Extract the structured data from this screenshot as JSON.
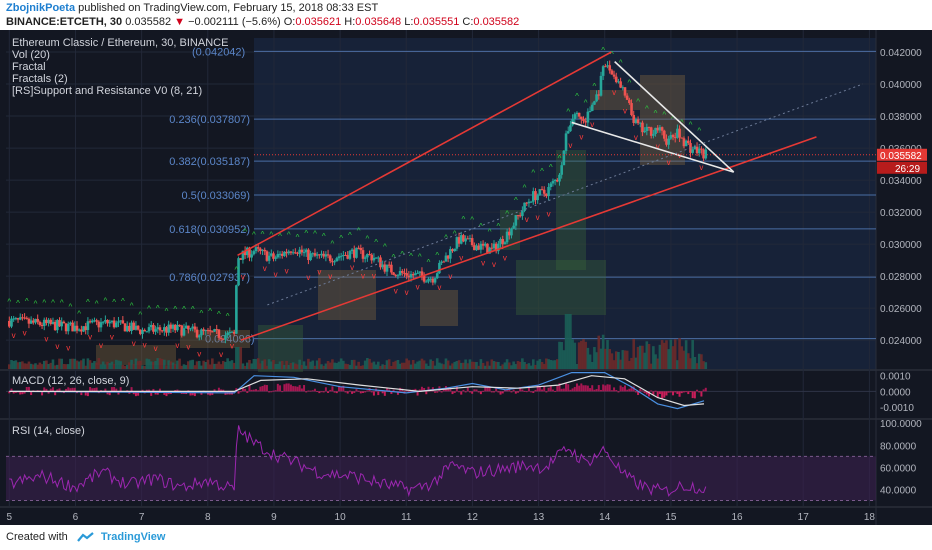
{
  "header": {
    "author": "ZbojnikPoeta",
    "published": "published on TradingView.com, February 15, 2018 08:33 EST",
    "symbol": "BINANCE:ETCETH, 30",
    "last": "0.035582",
    "change_icon": "down-triangle",
    "change": "−0.002111 (−5.6%)",
    "ohlc": [
      {
        "k": "O:",
        "v": "0.035621"
      },
      {
        "k": "H:",
        "v": "0.035648"
      },
      {
        "k": "L:",
        "v": "0.035551"
      },
      {
        "k": "C:",
        "v": "0.035582"
      }
    ]
  },
  "legend": [
    "Ethereum Classic / Ethereum, 30, BINANCE",
    "Vol (20)",
    "Fractal",
    "Fractals (2)",
    "[RS]Support and Resistance V0 (8, 21)"
  ],
  "price_badge": "0.035582",
  "countdown_badge": "26:29",
  "fib_levels": [
    {
      "label": "(0.042042)",
      "value": 0.042042
    },
    {
      "label": "0.236(0.037807)",
      "value": 0.037807
    },
    {
      "label": "0.382(0.035187)",
      "value": 0.035187
    },
    {
      "label": "0.5(0.033069)",
      "value": 0.033069
    },
    {
      "label": "0.618(0.030952)",
      "value": 0.030952
    },
    {
      "label": "0.786(0.027937)",
      "value": 0.027937
    },
    {
      "label": "0.024096)",
      "value": 0.024096
    }
  ],
  "macd_label": "MACD (12, 26, close, 9)",
  "rsi_label": "RSI (14, close)",
  "footer": {
    "created_with": "Created with",
    "brand": "TradingView",
    "logo_icon": "tradingview-logo-icon"
  },
  "colors": {
    "bg": "#131722",
    "up": "#26a69a",
    "down": "#ef5350",
    "trend": "#e53935",
    "fib": "#5b86c9",
    "rsi": "#9c27b0",
    "badge": "#e53935"
  },
  "chart_data": {
    "type": "candlestick",
    "title": "Ethereum Classic / Ethereum, 30, BINANCE",
    "price_axis": {
      "ticks": [
        "0.042000",
        "0.040000",
        "0.038000",
        "0.036000",
        "0.034000",
        "0.032000",
        "0.030000",
        "0.028000",
        "0.026000",
        "0.024000"
      ],
      "range": [
        0.0222,
        0.043
      ]
    },
    "macd_axis": {
      "ticks": [
        "0.0010",
        "0.0000",
        "-0.0010"
      ],
      "range": [
        -0.0017,
        0.0013
      ]
    },
    "rsi_axis": {
      "ticks": [
        "100.0000",
        "80.0000",
        "60.0000",
        "40.0000"
      ],
      "range": [
        25,
        102
      ],
      "band": [
        30,
        70
      ]
    },
    "time_axis": {
      "ticks": [
        "5",
        "6",
        "7",
        "8",
        "9",
        "10",
        "11",
        "12",
        "13",
        "14",
        "15",
        "16",
        "17",
        "18"
      ],
      "range": [
        4.95,
        18.1
      ]
    },
    "close_path": [
      [
        5.0,
        0.0252
      ],
      [
        5.5,
        0.025
      ],
      [
        6.0,
        0.0248
      ],
      [
        6.5,
        0.0251
      ],
      [
        7.0,
        0.0246
      ],
      [
        7.5,
        0.0247
      ],
      [
        8.0,
        0.0244
      ],
      [
        8.4,
        0.0243
      ],
      [
        8.45,
        0.0292
      ],
      [
        8.7,
        0.0296
      ],
      [
        9.0,
        0.0291
      ],
      [
        9.3,
        0.0298
      ],
      [
        9.5,
        0.0293
      ],
      [
        9.8,
        0.0291
      ],
      [
        10.2,
        0.0295
      ],
      [
        10.5,
        0.0292
      ],
      [
        10.7,
        0.0285
      ],
      [
        10.9,
        0.0282
      ],
      [
        11.2,
        0.028
      ],
      [
        11.4,
        0.0279
      ],
      [
        11.6,
        0.0292
      ],
      [
        11.8,
        0.0303
      ],
      [
        12.0,
        0.03
      ],
      [
        12.3,
        0.0296
      ],
      [
        12.5,
        0.0305
      ],
      [
        12.7,
        0.0318
      ],
      [
        12.9,
        0.033
      ],
      [
        13.1,
        0.0332
      ],
      [
        13.3,
        0.0342
      ],
      [
        13.45,
        0.0373
      ],
      [
        13.55,
        0.0382
      ],
      [
        13.7,
        0.0376
      ],
      [
        13.8,
        0.0386
      ],
      [
        13.9,
        0.0394
      ],
      [
        14.0,
        0.0412
      ],
      [
        14.15,
        0.0405
      ],
      [
        14.3,
        0.0393
      ],
      [
        14.45,
        0.0376
      ],
      [
        14.6,
        0.037
      ],
      [
        14.8,
        0.0372
      ],
      [
        14.95,
        0.0364
      ],
      [
        15.1,
        0.0369
      ],
      [
        15.3,
        0.036
      ],
      [
        15.55,
        0.0356
      ]
    ],
    "trendlines": [
      {
        "name": "channel-top",
        "from": [
          8.45,
          0.0293
        ],
        "to": [
          14.1,
          0.042
        ]
      },
      {
        "name": "channel-bottom",
        "from": [
          8.5,
          0.024
        ],
        "to": [
          17.2,
          0.0367
        ]
      },
      {
        "name": "wedge-top",
        "from": [
          14.15,
          0.0414
        ],
        "to": [
          15.95,
          0.0345
        ]
      },
      {
        "name": "wedge-bottom",
        "from": [
          13.5,
          0.0376
        ],
        "to": [
          15.95,
          0.0345
        ]
      }
    ],
    "macd": [
      [
        5,
        0.0
      ],
      [
        8.4,
        -0.0001
      ],
      [
        8.7,
        0.001
      ],
      [
        9.3,
        0.0009
      ],
      [
        10.0,
        0.0003
      ],
      [
        11.0,
        -0.0001
      ],
      [
        11.6,
        0.0002
      ],
      [
        12.0,
        0.0005
      ],
      [
        12.5,
        0.0001
      ],
      [
        13.0,
        0.0004
      ],
      [
        13.5,
        0.0012
      ],
      [
        14.0,
        0.0012
      ],
      [
        14.4,
        0.0003
      ],
      [
        14.8,
        -0.0008
      ],
      [
        15.1,
        -0.0011
      ],
      [
        15.5,
        -0.0006
      ]
    ],
    "macd_signal": [
      [
        5,
        0.0
      ],
      [
        8.4,
        0.0
      ],
      [
        8.8,
        0.0007
      ],
      [
        9.5,
        0.0008
      ],
      [
        10.3,
        0.0004
      ],
      [
        11.2,
        0.0
      ],
      [
        12.0,
        0.0003
      ],
      [
        12.7,
        0.0002
      ],
      [
        13.3,
        0.0004
      ],
      [
        13.8,
        0.001
      ],
      [
        14.3,
        0.0008
      ],
      [
        14.8,
        -0.0004
      ],
      [
        15.2,
        -0.0009
      ],
      [
        15.5,
        -0.0008
      ]
    ],
    "rsi": [
      [
        5,
        45
      ],
      [
        5.5,
        52
      ],
      [
        6,
        42
      ],
      [
        6.4,
        56
      ],
      [
        6.8,
        44
      ],
      [
        7.2,
        50
      ],
      [
        7.6,
        42
      ],
      [
        8.0,
        48
      ],
      [
        8.4,
        40
      ],
      [
        8.45,
        95
      ],
      [
        8.7,
        82
      ],
      [
        9.0,
        72
      ],
      [
        9.3,
        65
      ],
      [
        9.7,
        55
      ],
      [
        10.2,
        52
      ],
      [
        10.7,
        44
      ],
      [
        11.1,
        40
      ],
      [
        11.4,
        46
      ],
      [
        11.7,
        62
      ],
      [
        12.0,
        55
      ],
      [
        12.4,
        58
      ],
      [
        12.8,
        62
      ],
      [
        13.1,
        60
      ],
      [
        13.45,
        78
      ],
      [
        13.7,
        64
      ],
      [
        14.0,
        76
      ],
      [
        14.3,
        52
      ],
      [
        14.6,
        42
      ],
      [
        14.9,
        38
      ],
      [
        15.2,
        44
      ],
      [
        15.55,
        41
      ]
    ]
  }
}
